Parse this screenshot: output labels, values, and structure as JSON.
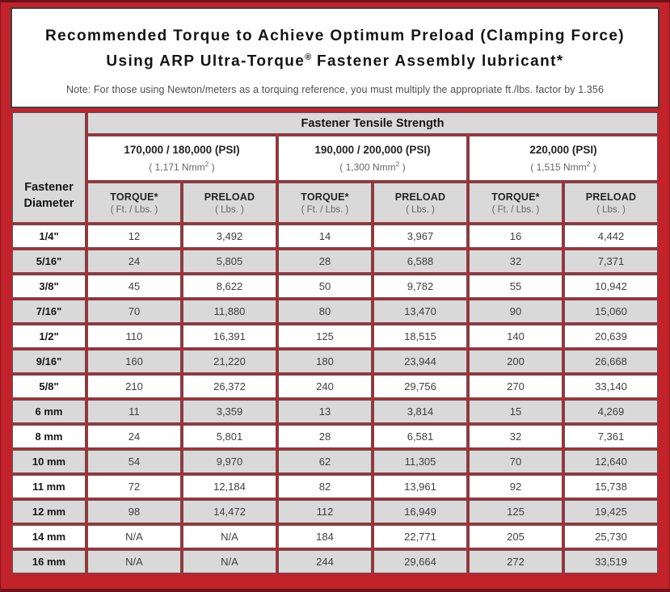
{
  "header": {
    "title_line1": "Recommended Torque to Achieve Optimum Preload (Clamping Force)",
    "title_line2_pre": "Using ARP Ultra-Torque",
    "title_line2_symbol": "®",
    "title_line2_post": " Fastener Assembly lubricant*",
    "note": "Note: For those using Newton/meters as a torquing reference, you must multiply the appropriate ft./lbs. factor by 1.356"
  },
  "table": {
    "tensile_header": "Fastener Tensile Strength",
    "diameter_header_line1": "Fastener",
    "diameter_header_line2": "Diameter",
    "groups": [
      {
        "psi": "170,000 / 180,000 (PSI)",
        "nmm_pre": "( 1,171 Nmm",
        "nmm_sup": "2",
        "nmm_post": " )"
      },
      {
        "psi": "190,000 / 200,000 (PSI)",
        "nmm_pre": "( 1,300 Nmm",
        "nmm_sup": "2",
        "nmm_post": " )"
      },
      {
        "psi": "220,000 (PSI)",
        "nmm_pre": "( 1,515 Nmm",
        "nmm_sup": "2",
        "nmm_post": " )"
      }
    ],
    "col_headers": {
      "torque": "TORQUE*",
      "torque_sub": "( Ft. / Lbs. )",
      "preload": "PRELOAD",
      "preload_sub": "( Lbs. )"
    },
    "rows": [
      {
        "d": "1/4\"",
        "v": [
          "12",
          "3,492",
          "14",
          "3,967",
          "16",
          "4,442"
        ]
      },
      {
        "d": "5/16\"",
        "v": [
          "24",
          "5,805",
          "28",
          "6,588",
          "32",
          "7,371"
        ]
      },
      {
        "d": "3/8\"",
        "v": [
          "45",
          "8,622",
          "50",
          "9,782",
          "55",
          "10,942"
        ]
      },
      {
        "d": "7/16\"",
        "v": [
          "70",
          "11,880",
          "80",
          "13,470",
          "90",
          "15,060"
        ]
      },
      {
        "d": "1/2\"",
        "v": [
          "110",
          "16,391",
          "125",
          "18,515",
          "140",
          "20,639"
        ]
      },
      {
        "d": "9/16\"",
        "v": [
          "160",
          "21,220",
          "180",
          "23,944",
          "200",
          "26,668"
        ]
      },
      {
        "d": "5/8\"",
        "v": [
          "210",
          "26,372",
          "240",
          "29,756",
          "270",
          "33,140"
        ]
      },
      {
        "d": "6 mm",
        "v": [
          "11",
          "3,359",
          "13",
          "3,814",
          "15",
          "4,269"
        ]
      },
      {
        "d": "8 mm",
        "v": [
          "24",
          "5,801",
          "28",
          "6,581",
          "32",
          "7,361"
        ]
      },
      {
        "d": "10 mm",
        "v": [
          "54",
          "9,970",
          "62",
          "11,305",
          "70",
          "12,640"
        ]
      },
      {
        "d": "11 mm",
        "v": [
          "72",
          "12,184",
          "82",
          "13,961",
          "92",
          "15,738"
        ]
      },
      {
        "d": "12 mm",
        "v": [
          "98",
          "14,472",
          "112",
          "16,949",
          "125",
          "19,425"
        ]
      },
      {
        "d": "14 mm",
        "v": [
          "N/A",
          "N/A",
          "184",
          "22,771",
          "205",
          "25,730"
        ]
      },
      {
        "d": "16 mm",
        "v": [
          "N/A",
          "N/A",
          "244",
          "29,664",
          "272",
          "33,519"
        ]
      }
    ]
  },
  "colors": {
    "frame_red": "#c2222a",
    "frame_edge_dark": "#6d121a",
    "cell_gray": "#d9d9d9",
    "cell_border": "#55565a",
    "value_text": "#404040"
  }
}
